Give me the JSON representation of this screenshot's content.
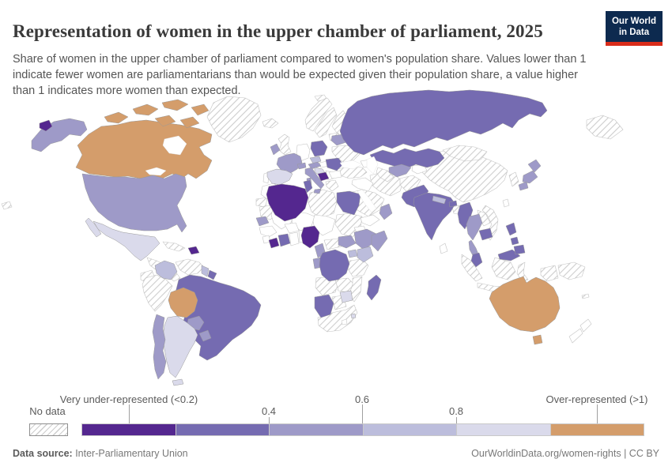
{
  "header": {
    "title": "Representation of women in the upper chamber of parliament, 2025",
    "subtitle": "Share of women in the upper chamber of parliament compared to women's population share. Values lower than 1 indicate fewer women are parliamentarians than would be expected given their population share, a value higher than 1 indicates more women than expected.",
    "logo": {
      "line1": "Our World",
      "line2": "in Data"
    }
  },
  "palette": {
    "c1": "#54278f",
    "c2": "#756bb1",
    "c3": "#9e9ac8",
    "c4": "#bcbddc",
    "c5": "#dadaeb",
    "c6": "#d49d6b",
    "hatchline": "#cdcdcd",
    "logo_bg": "#0d2a4f",
    "logo_red": "#d92c1a"
  },
  "legend": {
    "no_data_label": "No data",
    "left_label": "Very under-represented (<0.2)",
    "tick_04": "0.4",
    "tick_06": "0.6",
    "tick_08": "0.8",
    "right_label": "Over-represented (>1)",
    "bins": [
      {
        "label": "<0.2",
        "color": "#54278f"
      },
      {
        "label": "0.2-0.4",
        "color": "#756bb1"
      },
      {
        "label": "0.4-0.6",
        "color": "#9e9ac8"
      },
      {
        "label": "0.6-0.8",
        "color": "#bcbddc"
      },
      {
        "label": "0.8-1",
        "color": "#dadaeb"
      },
      {
        "label": ">1",
        "color": "#d49d6b"
      }
    ]
  },
  "footer": {
    "source_prefix": "Data source:",
    "source_value": " Inter-Parliamentary Union",
    "right_text": "OurWorldinData.org/women-rights | CC BY"
  },
  "chart_data": {
    "type": "choropleth-map",
    "title": "Representation of women in the upper chamber of parliament, 2025",
    "legend_position": "bottom",
    "bins": [
      "<0.2",
      "0.2-0.4",
      "0.4-0.6",
      "0.6-0.8",
      "0.8-1",
      ">1",
      "no data"
    ],
    "entities": [
      {
        "name": "Canada",
        "bin": ">1"
      },
      {
        "name": "Australia",
        "bin": ">1"
      },
      {
        "name": "Bolivia",
        "bin": ">1"
      },
      {
        "name": "Mexico",
        "bin": "0.8-1"
      },
      {
        "name": "Spain",
        "bin": "0.8-1"
      },
      {
        "name": "Argentina",
        "bin": "0.8-1"
      },
      {
        "name": "Zimbabwe",
        "bin": "0.8-1"
      },
      {
        "name": "Eswatini",
        "bin": "0.8-1"
      },
      {
        "name": "Croatia",
        "bin": "0.8-1"
      },
      {
        "name": "Colombia",
        "bin": "0.6-0.8"
      },
      {
        "name": "Kenya",
        "bin": "0.6-0.8"
      },
      {
        "name": "Nepal",
        "bin": "0.6-0.8"
      },
      {
        "name": "Czechia",
        "bin": "0.6-0.8"
      },
      {
        "name": "Guyana",
        "bin": "0.6-0.8"
      },
      {
        "name": "Uganda",
        "bin": "0.6-0.8"
      },
      {
        "name": "United States",
        "bin": "0.4-0.6"
      },
      {
        "name": "France",
        "bin": "0.4-0.6"
      },
      {
        "name": "Ireland",
        "bin": "0.4-0.6"
      },
      {
        "name": "Italy",
        "bin": "0.4-0.6"
      },
      {
        "name": "Austria",
        "bin": "0.4-0.6"
      },
      {
        "name": "Switzerland",
        "bin": "0.4-0.6"
      },
      {
        "name": "Belarus",
        "bin": "0.4-0.6"
      },
      {
        "name": "Uzbekistan",
        "bin": "0.4-0.6"
      },
      {
        "name": "Ethiopia",
        "bin": "0.4-0.6"
      },
      {
        "name": "Somalia",
        "bin": "0.4-0.6"
      },
      {
        "name": "Cameroon",
        "bin": "0.4-0.6"
      },
      {
        "name": "Gabon",
        "bin": "0.4-0.6"
      },
      {
        "name": "Senegal",
        "bin": "0.4-0.6"
      },
      {
        "name": "South Sudan",
        "bin": "0.4-0.6"
      },
      {
        "name": "Thailand",
        "bin": "0.4-0.6"
      },
      {
        "name": "Japan",
        "bin": "0.4-0.6"
      },
      {
        "name": "Chile",
        "bin": "0.4-0.6"
      },
      {
        "name": "Paraguay",
        "bin": "0.4-0.6"
      },
      {
        "name": "Uruguay",
        "bin": "0.4-0.6"
      },
      {
        "name": "Oman",
        "bin": "0.4-0.6"
      },
      {
        "name": "Russia",
        "bin": "0.2-0.4"
      },
      {
        "name": "Kazakhstan",
        "bin": "0.2-0.4"
      },
      {
        "name": "Brazil",
        "bin": "0.2-0.4"
      },
      {
        "name": "India",
        "bin": "0.2-0.4"
      },
      {
        "name": "Pakistan",
        "bin": "0.2-0.4"
      },
      {
        "name": "Egypt",
        "bin": "0.2-0.4"
      },
      {
        "name": "Democratic Republic of Congo",
        "bin": "0.2-0.4"
      },
      {
        "name": "Namibia",
        "bin": "0.2-0.4"
      },
      {
        "name": "Madagascar",
        "bin": "0.2-0.4"
      },
      {
        "name": "Cote d'Ivoire",
        "bin": "0.2-0.4"
      },
      {
        "name": "Tunisia",
        "bin": "0.2-0.4"
      },
      {
        "name": "Poland",
        "bin": "0.2-0.4"
      },
      {
        "name": "Romania",
        "bin": "0.2-0.4"
      },
      {
        "name": "Myanmar",
        "bin": "0.2-0.4"
      },
      {
        "name": "Cambodia",
        "bin": "0.2-0.4"
      },
      {
        "name": "Malaysia",
        "bin": "0.2-0.4"
      },
      {
        "name": "Philippines",
        "bin": "0.2-0.4"
      },
      {
        "name": "Bhutan",
        "bin": "0.2-0.4"
      },
      {
        "name": "Suriname",
        "bin": "0.2-0.4"
      },
      {
        "name": "Algeria",
        "bin": "<0.2"
      },
      {
        "name": "Nigeria",
        "bin": "<0.2"
      },
      {
        "name": "Liberia",
        "bin": "<0.2"
      },
      {
        "name": "Bosnia and Herzegovina",
        "bin": "<0.2"
      },
      {
        "name": "Haiti",
        "bin": "<0.2"
      },
      {
        "name": "Greenland",
        "bin": "no data"
      },
      {
        "name": "Cuba",
        "bin": "no data"
      },
      {
        "name": "Venezuela",
        "bin": "no data"
      },
      {
        "name": "Peru",
        "bin": "no data"
      },
      {
        "name": "Ecuador",
        "bin": "no data"
      },
      {
        "name": "United Kingdom",
        "bin": "no data"
      },
      {
        "name": "Germany",
        "bin": "no data"
      },
      {
        "name": "Norway",
        "bin": "no data"
      },
      {
        "name": "Sweden",
        "bin": "no data"
      },
      {
        "name": "Finland",
        "bin": "no data"
      },
      {
        "name": "Iceland",
        "bin": "no data"
      },
      {
        "name": "Ukraine",
        "bin": "no data"
      },
      {
        "name": "Greece",
        "bin": "no data"
      },
      {
        "name": "Turkey",
        "bin": "no data"
      },
      {
        "name": "Libya",
        "bin": "no data"
      },
      {
        "name": "Saudi Arabia",
        "bin": "no data"
      },
      {
        "name": "Iran",
        "bin": "no data"
      },
      {
        "name": "Sudan",
        "bin": "no data"
      },
      {
        "name": "Mauritania",
        "bin": "no data"
      },
      {
        "name": "Tanzania",
        "bin": "no data"
      },
      {
        "name": "Angola",
        "bin": "no data"
      },
      {
        "name": "Zambia",
        "bin": "no data"
      },
      {
        "name": "Mozambique",
        "bin": "no data"
      },
      {
        "name": "Botswana",
        "bin": "no data"
      },
      {
        "name": "South Africa",
        "bin": "no data"
      },
      {
        "name": "China",
        "bin": "no data"
      },
      {
        "name": "Mongolia",
        "bin": "no data"
      },
      {
        "name": "Vietnam",
        "bin": "no data"
      },
      {
        "name": "Laos",
        "bin": "no data"
      },
      {
        "name": "Indonesia",
        "bin": "no data"
      },
      {
        "name": "Papua New Guinea",
        "bin": "no data"
      },
      {
        "name": "North Korea",
        "bin": "no data"
      },
      {
        "name": "South Korea",
        "bin": "no data"
      },
      {
        "name": "Afghanistan",
        "bin": "no data"
      },
      {
        "name": "Turkmenistan",
        "bin": "no data"
      },
      {
        "name": "Bangladesh",
        "bin": "no data"
      }
    ]
  }
}
